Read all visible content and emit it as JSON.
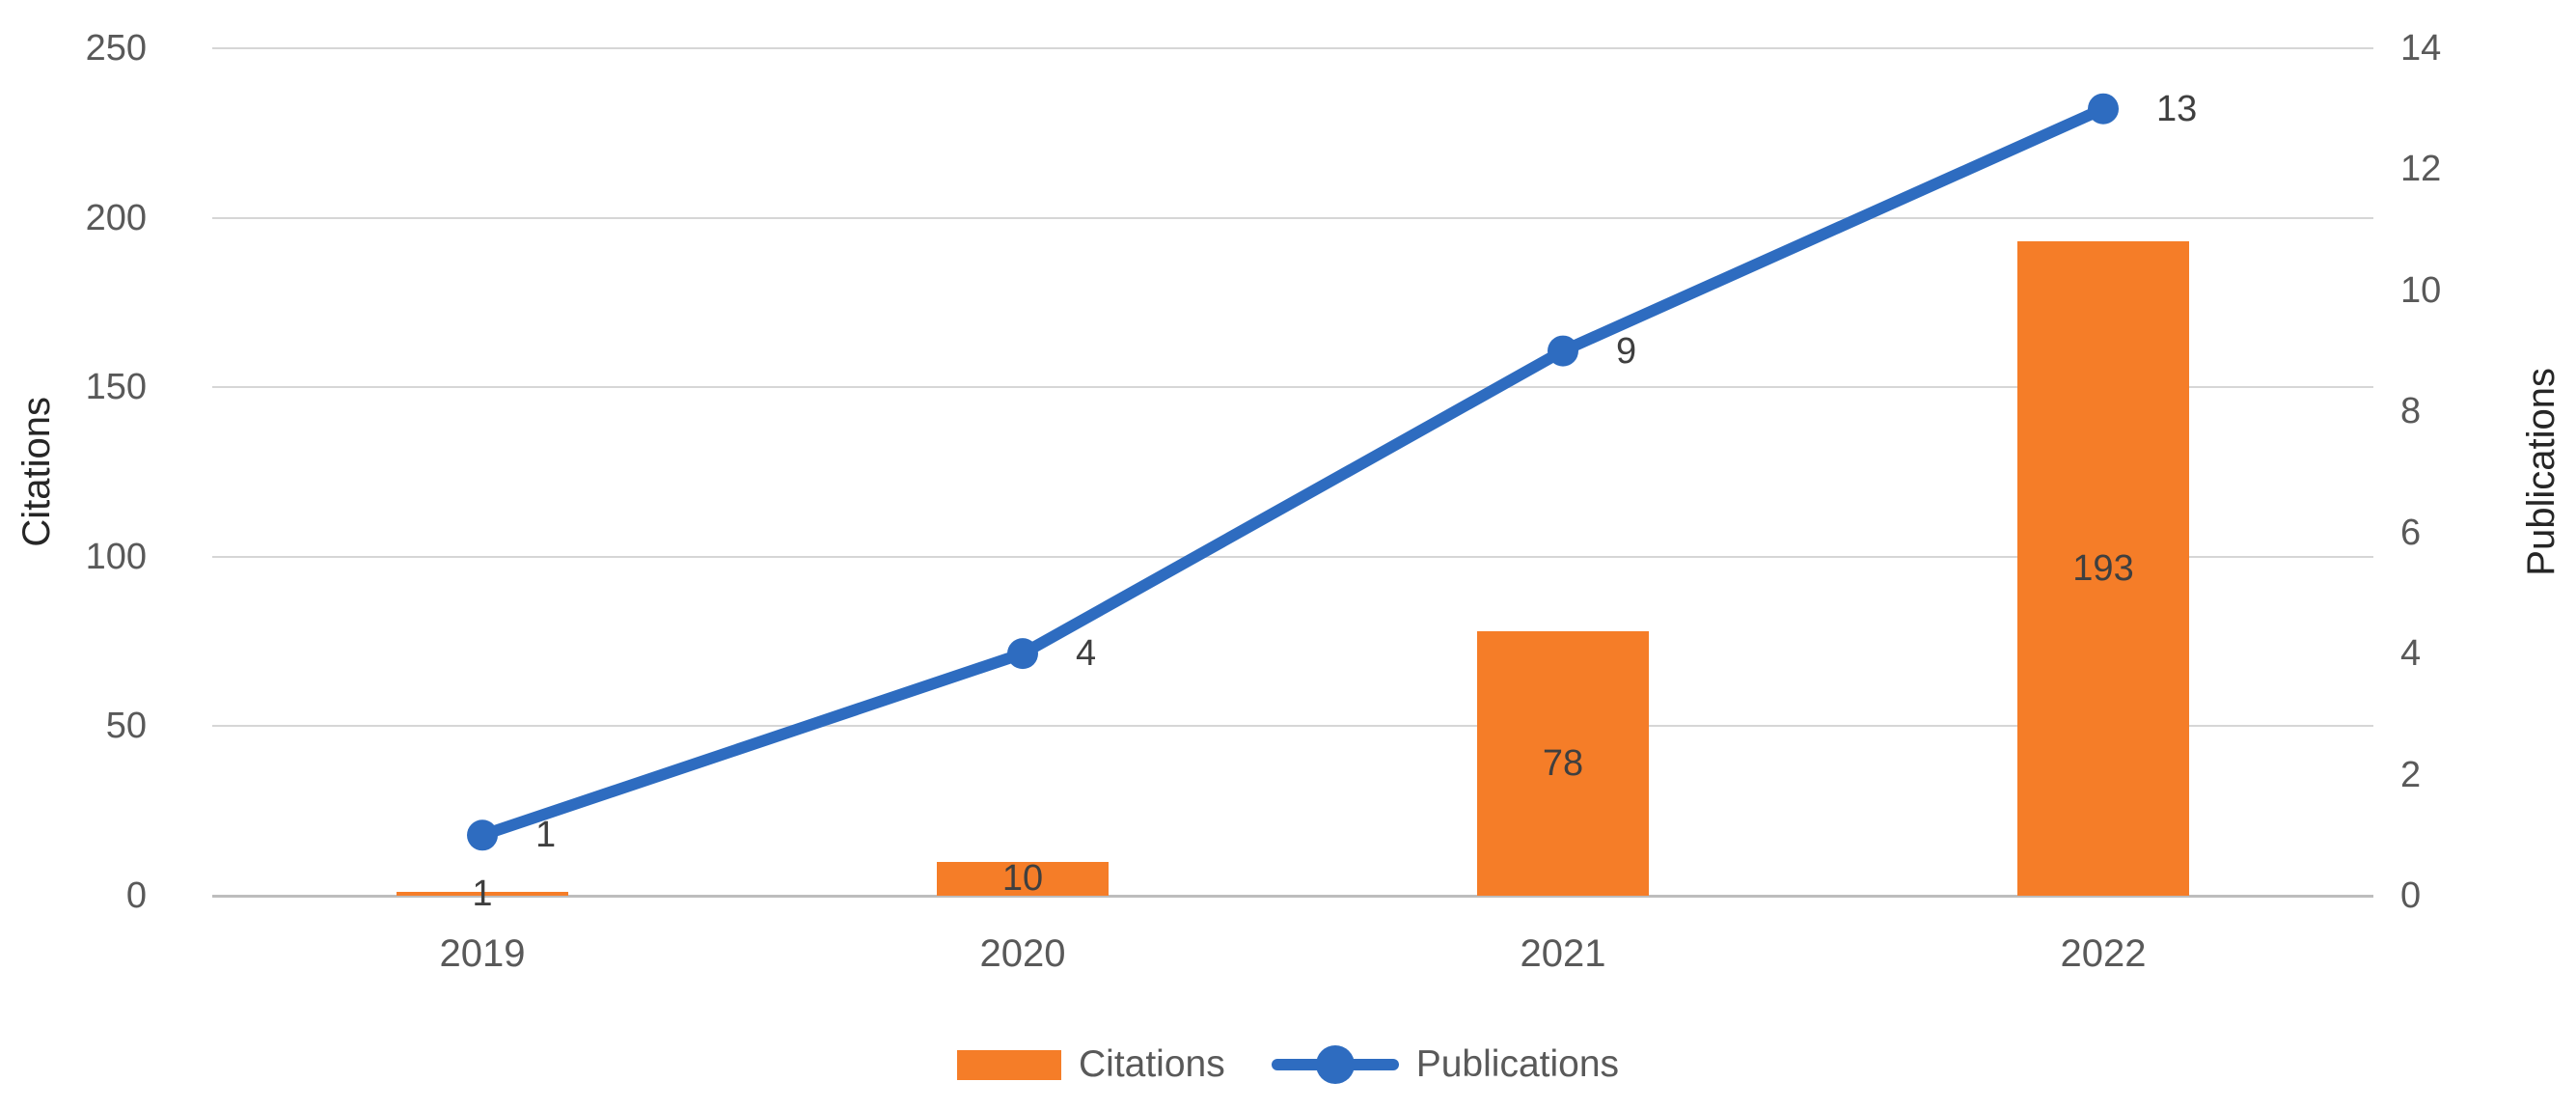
{
  "chart_data": {
    "type": "combo-bar-line",
    "categories": [
      "2019",
      "2020",
      "2021",
      "2022"
    ],
    "series": [
      {
        "name": "Citations",
        "type": "bar",
        "axis": "left",
        "values": [
          1,
          10,
          78,
          193
        ],
        "color": "#F57D28",
        "data_label_position": "center"
      },
      {
        "name": "Publications",
        "type": "line",
        "axis": "right",
        "values": [
          1,
          4,
          9,
          13
        ],
        "color": "#2E6CC0",
        "data_label_position": "right"
      }
    ],
    "left_axis": {
      "title": "Citations",
      "min": 0,
      "max": 250,
      "step": 50
    },
    "right_axis": {
      "title": "Publications",
      "min": 0,
      "max": 14,
      "step": 2
    },
    "x_axis_ticks": [
      "2019",
      "2020",
      "2021",
      "2022"
    ],
    "grid": true,
    "legend_position": "bottom",
    "colors": {
      "grid_line": "#D6D6D6",
      "axis_line": "#BDBDBD",
      "tick_text": "#595959",
      "data_label_text": "#3F3F3F",
      "axis_title_text": "#262626",
      "legend_text": "#595959",
      "background": "#FFFFFF"
    }
  }
}
